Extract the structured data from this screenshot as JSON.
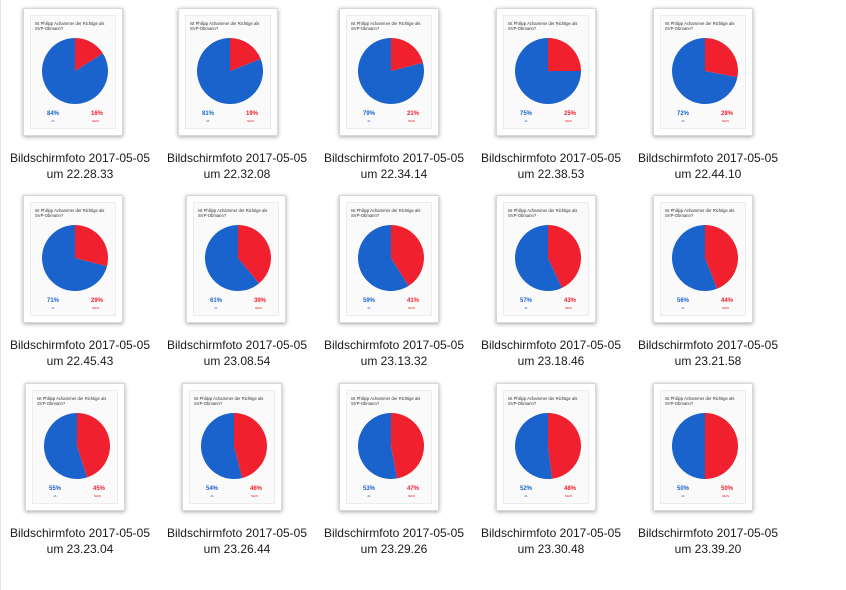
{
  "colors": {
    "ja": "#1a63cc",
    "nein": "#f0202e"
  },
  "question": "Ist Philipp Achammer der Richtige als SVP-Obmann?",
  "label_ja": "JA",
  "label_nein": "NEIN",
  "files": [
    {
      "line1": "Bildschirmfoto 2017-05-05",
      "line2": "um 22.28.33",
      "ja": 84,
      "nein": 16,
      "ja_text": "84%",
      "nein_text": "16%"
    },
    {
      "line1": "Bildschirmfoto 2017-05-05",
      "line2": "um 22.32.08",
      "ja": 81,
      "nein": 19,
      "ja_text": "81%",
      "nein_text": "19%"
    },
    {
      "line1": "Bildschirmfoto 2017-05-05",
      "line2": "um 22.34.14",
      "ja": 79,
      "nein": 21,
      "ja_text": "79%",
      "nein_text": "21%"
    },
    {
      "line1": "Bildschirmfoto 2017-05-05",
      "line2": "um 22.38.53",
      "ja": 75,
      "nein": 25,
      "ja_text": "75%",
      "nein_text": "25%"
    },
    {
      "line1": "Bildschirmfoto 2017-05-05",
      "line2": "um 22.44.10",
      "ja": 72,
      "nein": 28,
      "ja_text": "72%",
      "nein_text": "28%"
    },
    {
      "line1": "Bildschirmfoto 2017-05-05",
      "line2": "um 22.45.43",
      "ja": 71,
      "nein": 29,
      "ja_text": "71%",
      "nein_text": "29%"
    },
    {
      "line1": "Bildschirmfoto 2017-05-05",
      "line2": "um 23.08.54",
      "ja": 61,
      "nein": 39,
      "ja_text": "61%",
      "nein_text": "39%"
    },
    {
      "line1": "Bildschirmfoto 2017-05-05",
      "line2": "um 23.13.32",
      "ja": 59,
      "nein": 41,
      "ja_text": "59%",
      "nein_text": "41%"
    },
    {
      "line1": "Bildschirmfoto 2017-05-05",
      "line2": "um 23.18.46",
      "ja": 57,
      "nein": 43,
      "ja_text": "57%",
      "nein_text": "43%"
    },
    {
      "line1": "Bildschirmfoto 2017-05-05",
      "line2": "um 23.21.58",
      "ja": 56,
      "nein": 44,
      "ja_text": "56%",
      "nein_text": "44%"
    },
    {
      "line1": "Bildschirmfoto 2017-05-05",
      "line2": "um 23.23.04",
      "ja": 55,
      "nein": 45,
      "ja_text": "55%",
      "nein_text": "45%"
    },
    {
      "line1": "Bildschirmfoto 2017-05-05",
      "line2": "um 23.26.44",
      "ja": 54,
      "nein": 46,
      "ja_text": "54%",
      "nein_text": "46%"
    },
    {
      "line1": "Bildschirmfoto 2017-05-05",
      "line2": "um 23.29.26",
      "ja": 53,
      "nein": 47,
      "ja_text": "53%",
      "nein_text": "47%"
    },
    {
      "line1": "Bildschirmfoto 2017-05-05",
      "line2": "um 23.30.48",
      "ja": 52,
      "nein": 48,
      "ja_text": "52%",
      "nein_text": "48%"
    },
    {
      "line1": "Bildschirmfoto 2017-05-05",
      "line2": "um 23.39.20",
      "ja": 50,
      "nein": 50,
      "ja_text": "50%",
      "nein_text": "50%"
    }
  ]
}
